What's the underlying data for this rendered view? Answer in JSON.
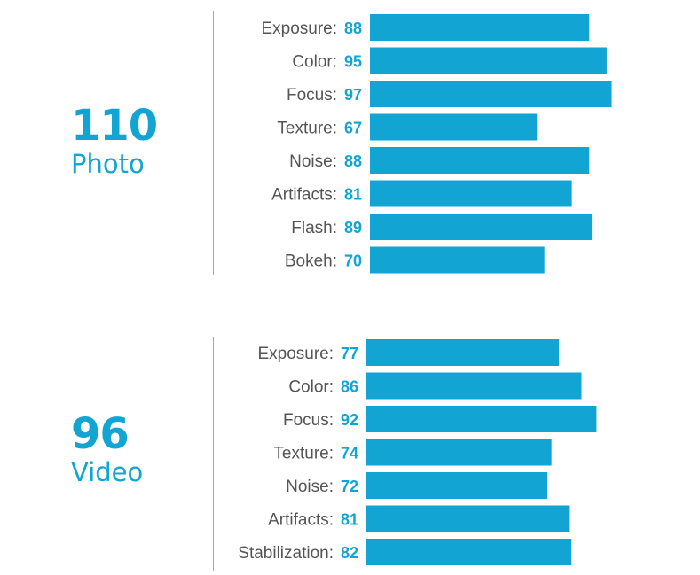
{
  "chart_data": [
    {
      "type": "bar",
      "orientation": "horizontal",
      "score": "110",
      "score_label": "Photo",
      "categories": [
        "Exposure:",
        "Color:",
        "Focus:",
        "Texture:",
        "Noise:",
        "Artifacts:",
        "Flash:",
        "Bokeh:"
      ],
      "values": [
        88,
        95,
        97,
        67,
        88,
        81,
        89,
        70
      ],
      "bar_color": "#12a4d2",
      "grid": false
    },
    {
      "type": "bar",
      "orientation": "horizontal",
      "score": "96",
      "score_label": "Video",
      "categories": [
        "Exposure:",
        "Color:",
        "Focus:",
        "Texture:",
        "Noise:",
        "Artifacts:",
        "Stabilization:"
      ],
      "values": [
        77,
        86,
        92,
        74,
        72,
        81,
        82
      ],
      "bar_color": "#12a4d2",
      "grid": false
    }
  ]
}
